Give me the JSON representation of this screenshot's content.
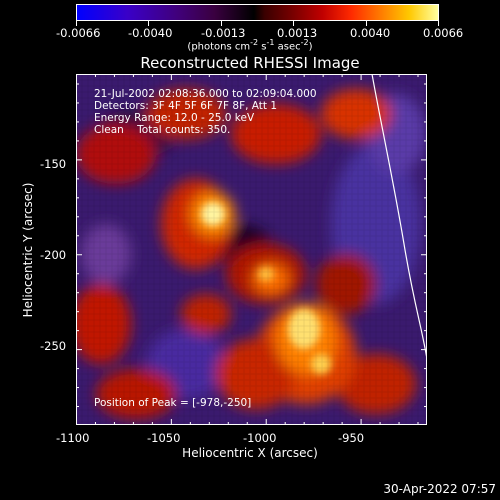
{
  "colorbar": {
    "ticks": [
      "-0.0066",
      "-0.0040",
      "-0.0013",
      "0.0013",
      "0.0040",
      "0.0066"
    ],
    "units_prefix": "(photons cm",
    "units_sup1": "-2",
    "units_mid1": " s",
    "units_sup2": "-1",
    "units_mid2": " asec",
    "units_sup3": "-2",
    "units_suffix": ")"
  },
  "title": "Reconstructed RHESSI Image",
  "info": {
    "line1": "21-Jul-2002 02:08:36.000 to 02:09:04.000",
    "line2": "Detectors: 3F 4F 5F 6F 7F 8F, Att 1",
    "line3": "Energy Range: 12.0 - 25.0 keV",
    "line4": "Clean    Total counts: 350."
  },
  "peak_label": "Position of Peak = [-978,-250]",
  "axes": {
    "xlabel": "Heliocentric X (arcsec)",
    "ylabel": "Heliocentric Y (arcsec)",
    "xticks": [
      "-1100",
      "-1050",
      "-1000",
      "-950"
    ],
    "yticks": [
      "-150",
      "-200",
      "-250"
    ],
    "xlim": [
      -1100,
      -915
    ],
    "ylim": [
      -290,
      -105
    ]
  },
  "peak": {
    "x": -978,
    "y": -250
  },
  "timestamp": "30-Apr-2022 07:57",
  "colors": {
    "limb": "#ffffff",
    "background": "#000000"
  }
}
